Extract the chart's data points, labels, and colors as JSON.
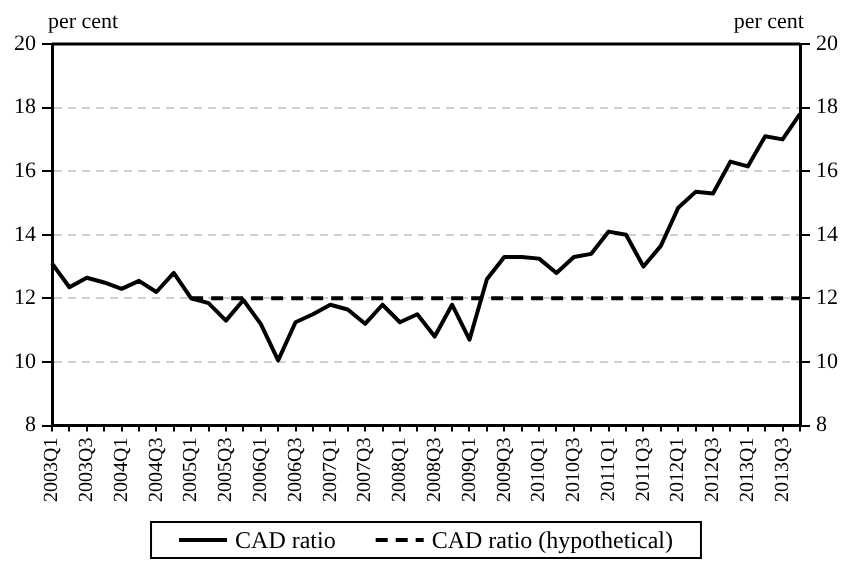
{
  "chart_data": {
    "type": "line",
    "ylabel": "per cent",
    "y2label": "per cent",
    "categories": [
      "2003Q1",
      null,
      "2003Q3",
      null,
      "2004Q1",
      null,
      "2004Q3",
      null,
      "2005Q1",
      null,
      "2005Q3",
      null,
      "2006Q1",
      null,
      "2006Q3",
      null,
      "2007Q1",
      null,
      "2007Q3",
      null,
      "2008Q1",
      null,
      "2008Q3",
      null,
      "2009Q1",
      null,
      "2009Q3",
      null,
      "2010Q1",
      null,
      "2010Q3",
      null,
      "2011Q1",
      null,
      "2011Q3",
      null,
      "2012Q1",
      null,
      "2012Q3",
      null,
      "2013Q1",
      null,
      "2013Q3",
      null
    ],
    "series": [
      {
        "name": "CAD ratio",
        "color": "#000000",
        "line_style": "solid",
        "values": [
          13.1,
          12.35,
          12.65,
          12.5,
          12.3,
          12.55,
          12.2,
          12.8,
          12.0,
          11.85,
          11.3,
          11.95,
          11.2,
          10.05,
          11.25,
          11.5,
          11.8,
          11.65,
          11.2,
          11.8,
          11.25,
          11.5,
          10.8,
          11.8,
          10.7,
          12.6,
          13.3,
          13.3,
          13.25,
          12.8,
          13.3,
          13.4,
          14.1,
          14.0,
          13.0,
          13.65,
          14.85,
          15.35,
          15.3,
          16.3,
          16.15,
          17.1,
          17.0,
          17.8
        ]
      },
      {
        "name": "CAD ratio (hypothetical)",
        "color": "#000000",
        "line_style": "dashed",
        "values": [
          null,
          null,
          null,
          null,
          null,
          null,
          null,
          null,
          12,
          12,
          12,
          12,
          12,
          12,
          12,
          12,
          12,
          12,
          12,
          12,
          12,
          12,
          12,
          12,
          12,
          12,
          12,
          12,
          12,
          12,
          12,
          12,
          12,
          12,
          12,
          12,
          12,
          12,
          12,
          12,
          12,
          12,
          12,
          12
        ]
      }
    ],
    "ylim": [
      8,
      20
    ],
    "yticks": [
      8,
      10,
      12,
      14,
      16,
      18,
      20
    ],
    "y2lim": [
      8,
      20
    ],
    "y2ticks": [
      8,
      10,
      12,
      14,
      16,
      18,
      20
    ],
    "grid": "y",
    "legend": "bottom",
    "marker": "none"
  }
}
